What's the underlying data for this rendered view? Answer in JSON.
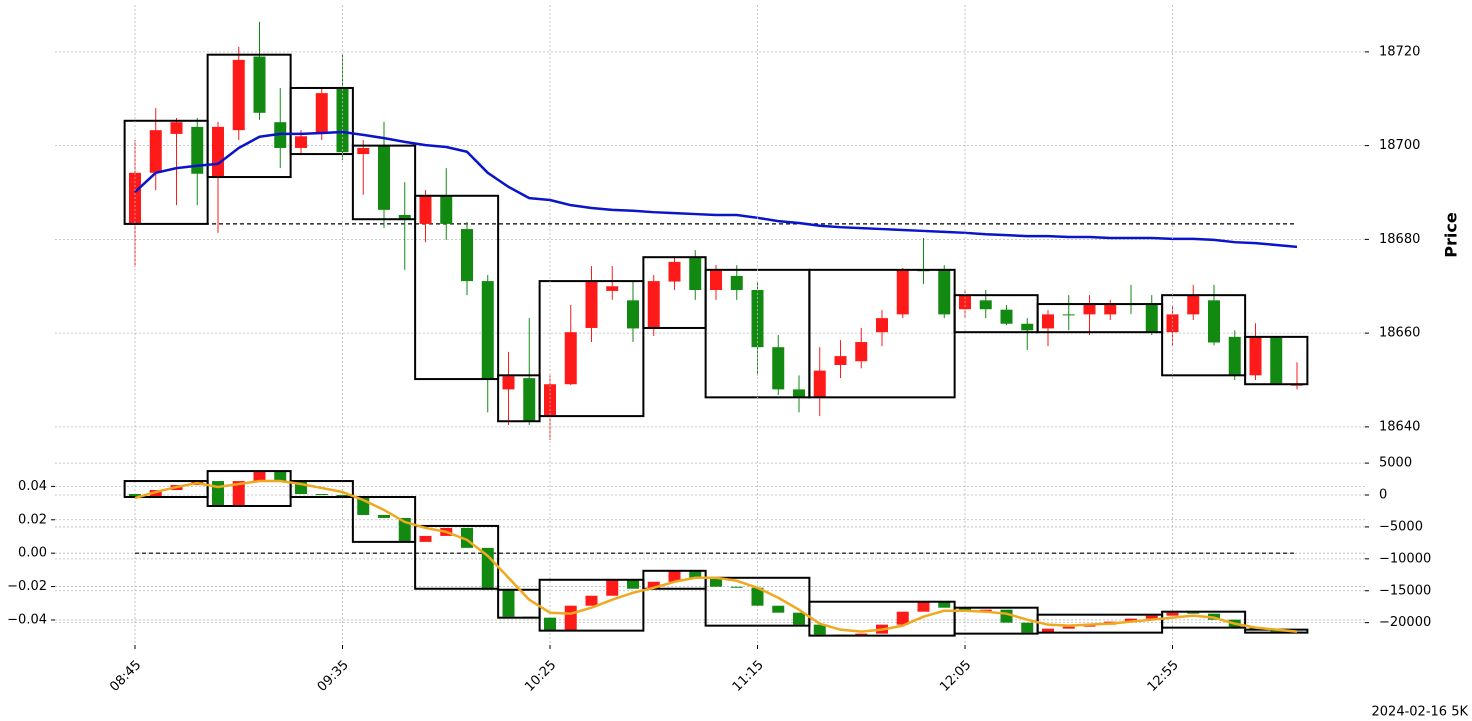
{
  "chart_data": [
    {
      "type": "candlestick",
      "ylabel": "Price",
      "y_axis_side": "right",
      "grid": true,
      "ylim": [
        18634,
        18730
      ],
      "yticks": [
        18640,
        18660,
        18680,
        18700,
        18720
      ],
      "up_color": "#ff1a1a",
      "down_color": "#128a12",
      "candles": {
        "open": [
          18683.3,
          18694.2,
          18702.5,
          18704,
          18693.5,
          18703.3,
          18719,
          18705,
          18699.5,
          18702.7,
          18712.3,
          18698.2,
          18700,
          18685.2,
          18683.3,
          18689.3,
          18682.2,
          18671.1,
          18648,
          18650.4,
          18642.3,
          18649.1,
          18661.1,
          18669,
          18667,
          18661,
          18671,
          18676.2,
          18669.2,
          18672.2,
          18669.2,
          18657,
          18648,
          18646.3,
          18653.2,
          18654,
          18660.2,
          18664,
          18673.5,
          18673.5,
          18665.1,
          18667,
          18665,
          18662,
          18661,
          18664,
          18664,
          18664,
          18666.2,
          18666.2,
          18660.2,
          18664,
          18667,
          18659.2,
          18651,
          18659.2,
          18649
        ],
        "high": [
          18701.2,
          18708,
          18705.9,
          18705.9,
          18705.1,
          18721.1,
          18726.4,
          18712.3,
          18703.3,
          18712.3,
          18719.4,
          18701.2,
          18705.1,
          18692.2,
          18690.5,
          18695.2,
          18683.7,
          18672.4,
          18656,
          18663.2,
          18651,
          18666,
          18674.3,
          18674.3,
          18670.9,
          18672.4,
          18676.4,
          18677.7,
          18674.5,
          18674.5,
          18670.9,
          18659.6,
          18651,
          18657,
          18658.5,
          18661.1,
          18664.9,
          18673.9,
          18680.3,
          18674.5,
          18669.2,
          18669.2,
          18666,
          18663.2,
          18664.9,
          18668.1,
          18668.1,
          18667.1,
          18670.3,
          18668.1,
          18666,
          18670.3,
          18670.3,
          18660.6,
          18662.1,
          18659.2,
          18653.8
        ],
        "low": [
          18674.1,
          18690.5,
          18687.3,
          18687.3,
          18681.4,
          18701.2,
          18705.5,
          18695.2,
          18698,
          18701.2,
          18696.9,
          18689.5,
          18682.4,
          18673.5,
          18679.4,
          18679.9,
          18668.1,
          18643.1,
          18640.4,
          18640.4,
          18637.2,
          18648.9,
          18658.1,
          18667.1,
          18658.1,
          18659.4,
          18669.2,
          18667.1,
          18667.1,
          18667.1,
          18651,
          18646.8,
          18643.1,
          18642.3,
          18650.4,
          18652.5,
          18657.2,
          18663.2,
          18670.5,
          18663.2,
          18663.2,
          18663.2,
          18661.7,
          18656.4,
          18657.2,
          18660.6,
          18659.6,
          18662.8,
          18664.1,
          18659.6,
          18657.4,
          18662.8,
          18657.4,
          18650,
          18650,
          18649.1,
          18648
        ],
        "close": [
          18694.2,
          18703.3,
          18705,
          18694,
          18704,
          18718.3,
          18707,
          18699.5,
          18702,
          18711.2,
          18698.6,
          18699.5,
          18686.3,
          18684.3,
          18689.3,
          18683.3,
          18671.1,
          18650.2,
          18650.8,
          18641.2,
          18649.1,
          18660.2,
          18671.1,
          18670,
          18661,
          18671.1,
          18675.2,
          18669.2,
          18673.5,
          18669.2,
          18657,
          18648,
          18646.3,
          18652,
          18655.1,
          18658.1,
          18663.2,
          18673.5,
          18673.2,
          18664,
          18668.1,
          18665.1,
          18662,
          18660.6,
          18664,
          18663.8,
          18666.2,
          18666.2,
          18666,
          18660.2,
          18664,
          18668.1,
          18658,
          18651,
          18659.2,
          18649.1,
          18649
        ]
      },
      "line": {
        "color": "#0a14c8",
        "values": [
          18690.1,
          18694.2,
          18695.2,
          18695.7,
          18696.1,
          18699.5,
          18701.9,
          18702.5,
          18702.5,
          18702.7,
          18702.9,
          18702.3,
          18701.6,
          18700.8,
          18700.1,
          18699.7,
          18698.7,
          18694.2,
          18691.2,
          18688.8,
          18688.4,
          18687.3,
          18686.7,
          18686.3,
          18686.1,
          18685.8,
          18685.6,
          18685.4,
          18685.2,
          18685.2,
          18684.6,
          18683.9,
          18683.5,
          18682.9,
          18682.6,
          18682.4,
          18682.2,
          18682,
          18681.8,
          18681.6,
          18681.4,
          18681.1,
          18680.9,
          18680.7,
          18680.7,
          18680.5,
          18680.5,
          18680.3,
          18680.3,
          18680.3,
          18680.1,
          18680.1,
          18679.9,
          18679.4,
          18679.2,
          18678.8,
          18678.4
        ]
      },
      "hline": 18683.3,
      "boxes": {
        "items": [
          {
            "start": 0,
            "end": 3,
            "high": 18705.3,
            "low": 18683.3
          },
          {
            "start": 4,
            "end": 7,
            "high": 18719.4,
            "low": 18693.3
          },
          {
            "start": 8,
            "end": 10,
            "high": 18712.3,
            "low": 18698.2
          },
          {
            "start": 11,
            "end": 13,
            "high": 18700,
            "low": 18684.3
          },
          {
            "start": 14,
            "end": 17,
            "high": 18689.3,
            "low": 18650.2
          },
          {
            "start": 18,
            "end": 19,
            "high": 18651,
            "low": 18641.2
          },
          {
            "start": 20,
            "end": 24,
            "high": 18671.1,
            "low": 18642.3
          },
          {
            "start": 25,
            "end": 27,
            "high": 18676.2,
            "low": 18661.1
          },
          {
            "start": 28,
            "end": 32,
            "high": 18673.5,
            "low": 18646.3
          },
          {
            "start": 33,
            "end": 39,
            "high": 18673.5,
            "low": 18646.3
          },
          {
            "start": 40,
            "end": 43,
            "high": 18668.1,
            "low": 18660.2
          },
          {
            "start": 44,
            "end": 49,
            "high": 18666.2,
            "low": 18660.2
          },
          {
            "start": 50,
            "end": 53,
            "high": 18668.1,
            "low": 18651
          },
          {
            "start": 54,
            "end": 56,
            "high": 18659.2,
            "low": 18649.1
          }
        ]
      }
    },
    {
      "type": "candlestick",
      "y_axis_side": "left",
      "grid": true,
      "categories": [
        "08:45",
        null,
        null,
        null,
        null,
        null,
        null,
        null,
        null,
        null,
        "09:35",
        null,
        null,
        null,
        null,
        null,
        null,
        null,
        null,
        null,
        "10:25",
        null,
        null,
        null,
        null,
        null,
        null,
        null,
        null,
        null,
        "11:15",
        null,
        null,
        null,
        null,
        null,
        null,
        null,
        null,
        null,
        "12:05",
        null,
        null,
        null,
        null,
        null,
        null,
        null,
        null,
        null,
        "12:55",
        null,
        null,
        null,
        null,
        null,
        null
      ],
      "ylim": [
        -0.055,
        0.057
      ],
      "yticks": [
        0.04,
        0.02,
        {
          "value": 0,
          "label": "0.00"
        },
        {
          "value": -0.02,
          "label": "−0.02"
        },
        {
          "value": -0.04,
          "label": "−0.04"
        }
      ],
      "y2lim": [
        -23500,
        5800
      ],
      "y2ticks": [
        5000,
        0,
        {
          "value": -5000,
          "label": "−5000"
        },
        {
          "value": -10000,
          "label": "−10000"
        },
        {
          "value": -15000,
          "label": "−15000"
        },
        {
          "value": -20000,
          "label": "−20000"
        }
      ],
      "up_color": "#ff1a1a",
      "down_color": "#128a12",
      "candles": {
        "axis": "y2",
        "open": [
          156,
          -313,
          781,
          1563,
          2188,
          -1719,
          2188,
          3750,
          2188,
          156,
          0,
          -313,
          -3125,
          -3594,
          -7344,
          -6406,
          -5156,
          -8281,
          -14844,
          -19063,
          -19219,
          -21250,
          -17344,
          -15781,
          -13281,
          -14688,
          -13594,
          -11875,
          -12969,
          -14375,
          -14531,
          -17344,
          -18438,
          -20313,
          -21875,
          -22031,
          -21719,
          -20313,
          -18281,
          -16719,
          -17656,
          -18281,
          -17969,
          -20000,
          -21563,
          -20938,
          -20625,
          -20313,
          -19844,
          -19375,
          -18906,
          -18438,
          -18594,
          -19531,
          -20781,
          -21094,
          -21406
        ],
        "close": [
          -313,
          781,
          1563,
          2188,
          -1719,
          2188,
          3750,
          2188,
          156,
          0,
          -313,
          -3125,
          -3594,
          -7344,
          -6406,
          -5156,
          -8281,
          -14844,
          -19063,
          -19219,
          -21250,
          -17344,
          -15781,
          -13281,
          -14688,
          -13594,
          -11875,
          -12969,
          -14375,
          -14531,
          -17344,
          -18438,
          -20313,
          -21875,
          -22031,
          -21719,
          -20313,
          -18281,
          -16719,
          -17656,
          -18281,
          -17969,
          -20000,
          -21563,
          -20938,
          -20625,
          -20313,
          -19844,
          -19375,
          -18906,
          -18438,
          -18594,
          -19531,
          -20781,
          -21094,
          -21406,
          -21563
        ]
      },
      "line": {
        "axis": "y2",
        "color": "#f0a81e",
        "values": [
          -469,
          469,
          1250,
          1875,
          1250,
          1719,
          2188,
          2188,
          1719,
          1094,
          469,
          -781,
          -2344,
          -4219,
          -5156,
          -5781,
          -7031,
          -9531,
          -12969,
          -16406,
          -18438,
          -18594,
          -17656,
          -16406,
          -15313,
          -14531,
          -13594,
          -12969,
          -12969,
          -13438,
          -14531,
          -16094,
          -17969,
          -20156,
          -21094,
          -21406,
          -21094,
          -20469,
          -19063,
          -18125,
          -18125,
          -18281,
          -18594,
          -19531,
          -20313,
          -20469,
          -20313,
          -20156,
          -19844,
          -19531,
          -19219,
          -18906,
          -19219,
          -20156,
          -20781,
          -21094,
          -21406
        ]
      },
      "hline": 0,
      "boxes": {
        "axis": "y2",
        "items": [
          {
            "start": 0,
            "end": 3,
            "high": 2188,
            "low": -313
          },
          {
            "start": 4,
            "end": 7,
            "high": 3750,
            "low": -1719
          },
          {
            "start": 8,
            "end": 10,
            "high": 2188,
            "low": -313
          },
          {
            "start": 11,
            "end": 13,
            "high": -313,
            "low": -7344
          },
          {
            "start": 14,
            "end": 17,
            "high": -4844,
            "low": -14688
          },
          {
            "start": 18,
            "end": 19,
            "high": -14844,
            "low": -19219
          },
          {
            "start": 20,
            "end": 24,
            "high": -13281,
            "low": -21250
          },
          {
            "start": 25,
            "end": 27,
            "high": -11875,
            "low": -14688
          },
          {
            "start": 28,
            "end": 32,
            "high": -12969,
            "low": -20469
          },
          {
            "start": 33,
            "end": 39,
            "high": -16719,
            "low": -22031
          },
          {
            "start": 40,
            "end": 43,
            "high": -17656,
            "low": -21719
          },
          {
            "start": 44,
            "end": 49,
            "high": -18750,
            "low": -21563
          },
          {
            "start": 50,
            "end": 53,
            "high": -18281,
            "low": -20781
          },
          {
            "start": 54,
            "end": 56,
            "high": -21094,
            "low": -21563
          }
        ]
      }
    }
  ],
  "footer": "2024-02-16 5K"
}
